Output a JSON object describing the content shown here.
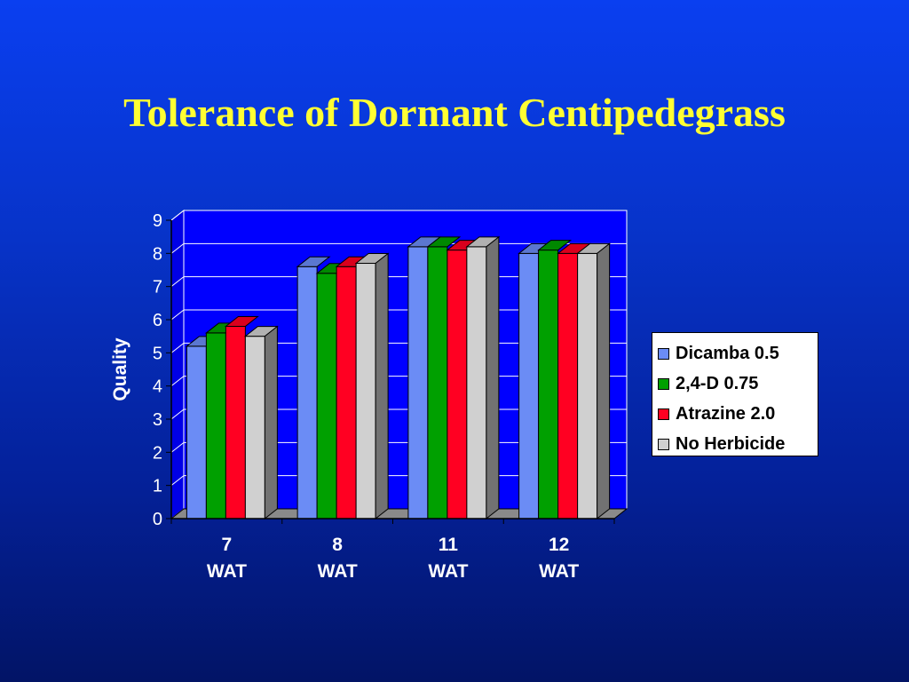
{
  "slide": {
    "title": "Tolerance of Dormant Centipedegrass"
  },
  "chart_data": {
    "type": "bar",
    "title": "",
    "ylabel": "Quality",
    "xlabel": "",
    "ylim": [
      0,
      9
    ],
    "yticks": [
      "0",
      "1",
      "2",
      "3",
      "4",
      "5",
      "6",
      "7",
      "8",
      "9"
    ],
    "categories": [
      [
        "7",
        "WAT"
      ],
      [
        "8",
        "WAT"
      ],
      [
        "11",
        "WAT"
      ],
      [
        "12",
        "WAT"
      ]
    ],
    "series": [
      {
        "name": "Dicamba 0.5",
        "color": "#6b8cf5",
        "values": [
          5.2,
          7.6,
          8.2,
          8.0
        ]
      },
      {
        "name": "2,4-D 0.75",
        "color": "#00a000",
        "values": [
          5.6,
          7.4,
          8.2,
          8.1
        ]
      },
      {
        "name": "Atrazine 2.0",
        "color": "#ff0022",
        "values": [
          5.8,
          7.6,
          8.1,
          8.0
        ]
      },
      {
        "name": "No Herbicide",
        "color": "#d0d0d0",
        "values": [
          5.5,
          7.7,
          8.2,
          8.0
        ]
      }
    ],
    "grid": true,
    "legend_position": "right",
    "style": "3d-clustered"
  }
}
